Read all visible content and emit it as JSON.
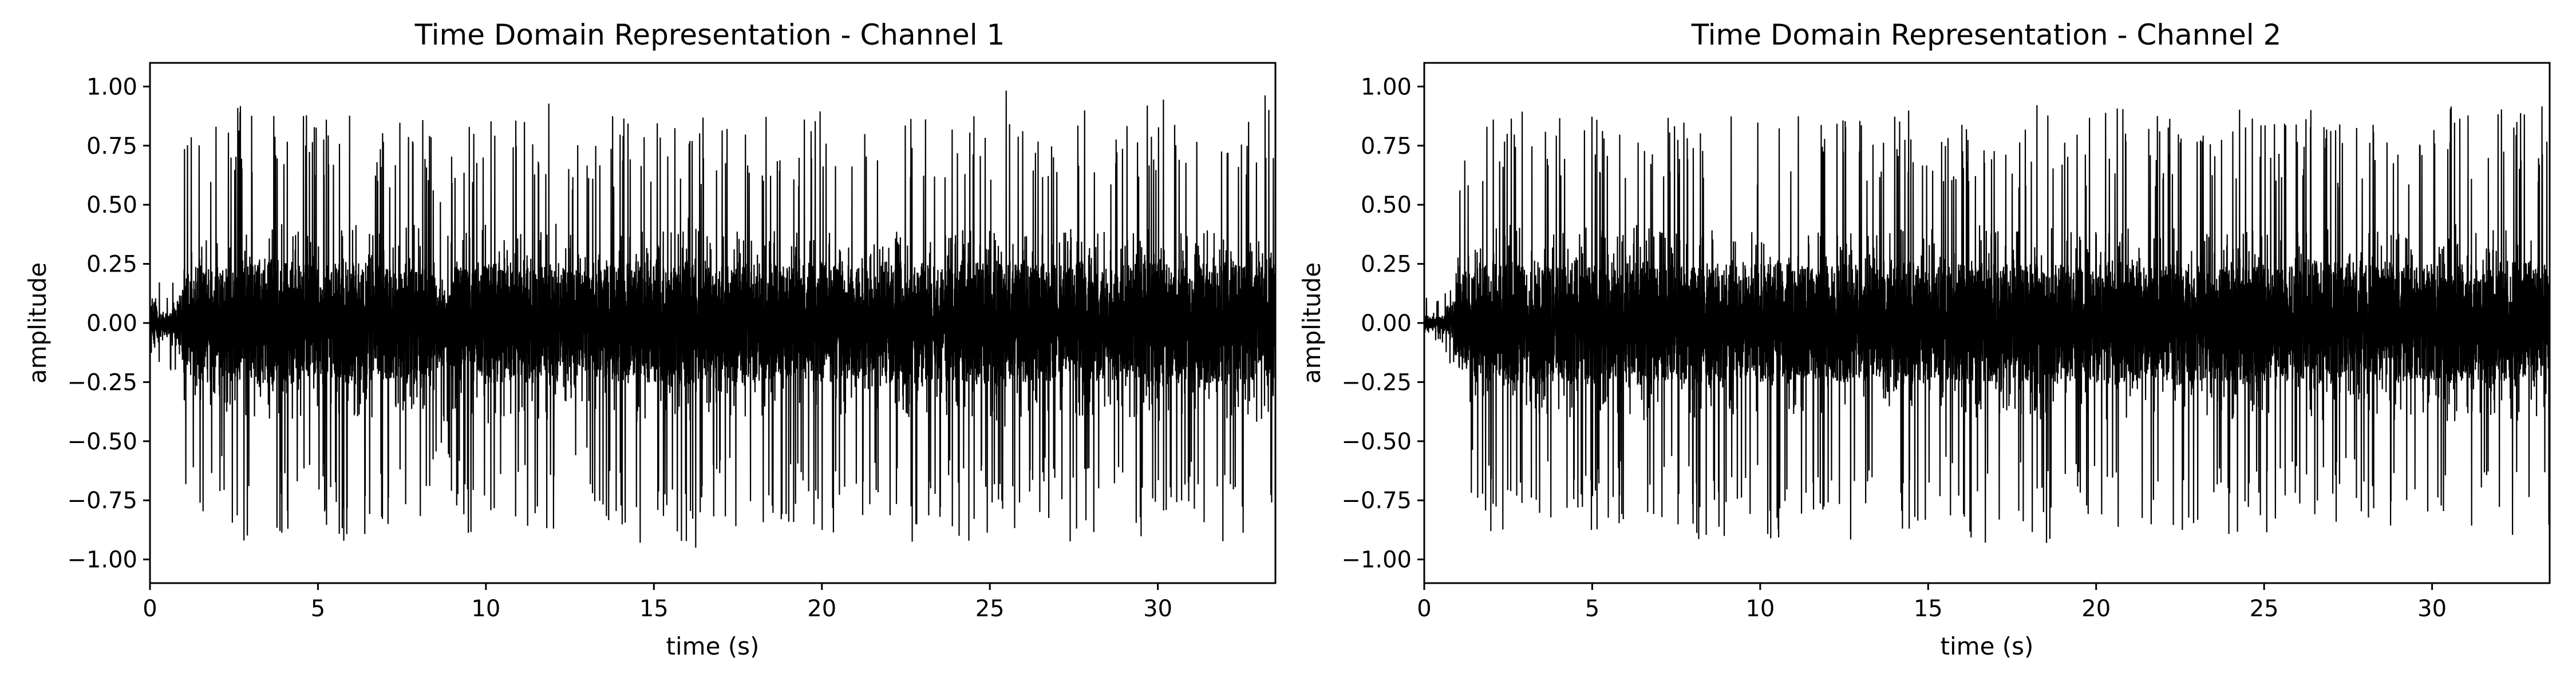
{
  "chart_data": [
    {
      "type": "line",
      "title": "Time Domain Representation - Channel 1",
      "xlabel": "time (s)",
      "ylabel": "amplitude",
      "xlim": [
        0,
        33.5
      ],
      "ylim": [
        -1.1,
        1.1
      ],
      "x_ticks": [
        0,
        5,
        10,
        15,
        20,
        25,
        30
      ],
      "x_tick_labels": [
        "0",
        "5",
        "10",
        "15",
        "20",
        "25",
        "30"
      ],
      "y_ticks": [
        -1.0,
        -0.75,
        -0.5,
        -0.25,
        0.0,
        0.25,
        0.5,
        0.75,
        1.0
      ],
      "y_tick_labels": [
        "−1.00",
        "−0.75",
        "−0.50",
        "−0.25",
        "0.00",
        "0.25",
        "0.50",
        "0.75",
        "1.00"
      ],
      "grid": false,
      "series": [
        {
          "color": "#000000",
          "x": [
            0,
            0.2,
            0.5,
            0.8,
            1.0,
            1.3,
            1.6,
            2.0,
            2.5,
            3.0,
            3.5,
            4.0,
            4.5,
            5.0,
            5.5,
            6.0,
            6.5,
            7.0,
            7.5,
            8.0,
            8.5,
            8.8,
            9.0,
            9.5,
            10.0,
            10.5,
            11.0,
            11.5,
            12.0,
            12.5,
            13.0,
            13.5,
            14.0,
            14.5,
            15.0,
            15.5,
            16.0,
            16.3,
            16.5,
            17.0,
            17.5,
            18.0,
            18.5,
            19.0,
            19.5,
            20.0,
            20.5,
            21.0,
            21.5,
            22.0,
            22.5,
            23.0,
            23.5,
            24.0,
            24.5,
            25.0,
            25.5,
            26.0,
            26.5,
            27.0,
            27.5,
            28.0,
            28.5,
            29.0,
            29.5,
            30.0,
            30.5,
            31.0,
            31.5,
            32.0,
            32.5,
            33.0,
            33.5
          ],
          "envelope": [
            0.45,
            0.25,
            0.15,
            0.3,
            0.75,
            0.8,
            0.9,
            0.85,
            0.9,
            0.95,
            1.0,
            0.95,
            0.9,
            0.85,
            0.9,
            0.95,
            0.9,
            0.85,
            0.9,
            0.95,
            0.75,
            0.35,
            0.85,
            0.9,
            0.95,
            0.9,
            0.85,
            0.9,
            0.95,
            0.85,
            0.8,
            0.85,
            0.9,
            0.95,
            0.9,
            0.85,
            1.0,
            0.95,
            0.85,
            0.85,
            0.9,
            0.95,
            0.9,
            0.85,
            0.9,
            0.95,
            0.9,
            0.85,
            0.8,
            0.9,
            0.95,
            0.9,
            0.85,
            0.9,
            0.95,
            0.9,
            1.0,
            0.9,
            0.85,
            0.9,
            0.95,
            0.9,
            0.85,
            0.9,
            0.95,
            1.0,
            0.9,
            0.85,
            0.9,
            0.95,
            0.9,
            0.95,
            1.0
          ]
        }
      ]
    },
    {
      "type": "line",
      "title": "Time Domain Representation - Channel 2",
      "xlabel": "time (s)",
      "ylabel": "amplitude",
      "xlim": [
        0,
        33.5
      ],
      "ylim": [
        -1.1,
        1.1
      ],
      "x_ticks": [
        0,
        5,
        10,
        15,
        20,
        25,
        30
      ],
      "x_tick_labels": [
        "0",
        "5",
        "10",
        "15",
        "20",
        "25",
        "30"
      ],
      "y_ticks": [
        -1.0,
        -0.75,
        -0.5,
        -0.25,
        0.0,
        0.25,
        0.5,
        0.75,
        1.0
      ],
      "y_tick_labels": [
        "−1.00",
        "−0.75",
        "−0.50",
        "−0.25",
        "0.00",
        "0.25",
        "0.50",
        "0.75",
        "1.00"
      ],
      "grid": false,
      "series": [
        {
          "color": "#000000",
          "x": [
            0,
            0.2,
            0.5,
            0.8,
            1.0,
            1.3,
            1.6,
            2.0,
            2.5,
            3.0,
            3.5,
            4.0,
            4.5,
            5.0,
            5.5,
            6.0,
            6.5,
            7.0,
            7.5,
            8.0,
            8.5,
            9.0,
            9.5,
            10.0,
            10.5,
            11.0,
            11.5,
            12.0,
            12.5,
            13.0,
            13.5,
            14.0,
            14.5,
            15.0,
            15.5,
            16.0,
            16.5,
            17.0,
            17.5,
            18.0,
            18.5,
            19.0,
            19.5,
            20.0,
            20.5,
            21.0,
            21.5,
            22.0,
            22.5,
            23.0,
            23.5,
            24.0,
            24.5,
            25.0,
            25.5,
            26.0,
            26.5,
            27.0,
            27.5,
            28.0,
            28.5,
            29.0,
            29.5,
            30.0,
            30.5,
            31.0,
            31.5,
            32.0,
            32.5,
            33.0,
            33.5
          ],
          "envelope": [
            0.15,
            0.1,
            0.1,
            0.2,
            0.7,
            0.8,
            0.85,
            0.9,
            0.95,
            0.9,
            0.85,
            0.9,
            0.95,
            0.9,
            0.85,
            0.9,
            0.95,
            0.9,
            0.85,
            0.9,
            0.95,
            0.9,
            0.85,
            0.9,
            0.95,
            0.9,
            0.85,
            0.9,
            0.95,
            0.9,
            0.85,
            0.9,
            0.95,
            0.9,
            0.85,
            0.9,
            0.95,
            0.9,
            0.85,
            0.9,
            0.95,
            0.9,
            0.85,
            0.9,
            0.95,
            0.9,
            0.85,
            0.9,
            0.95,
            0.9,
            0.85,
            0.9,
            0.95,
            0.9,
            0.85,
            0.9,
            0.95,
            0.9,
            0.85,
            0.9,
            0.95,
            0.9,
            0.85,
            0.9,
            0.95,
            0.9,
            0.85,
            0.9,
            0.95,
            0.9,
            0.95
          ]
        }
      ]
    }
  ]
}
